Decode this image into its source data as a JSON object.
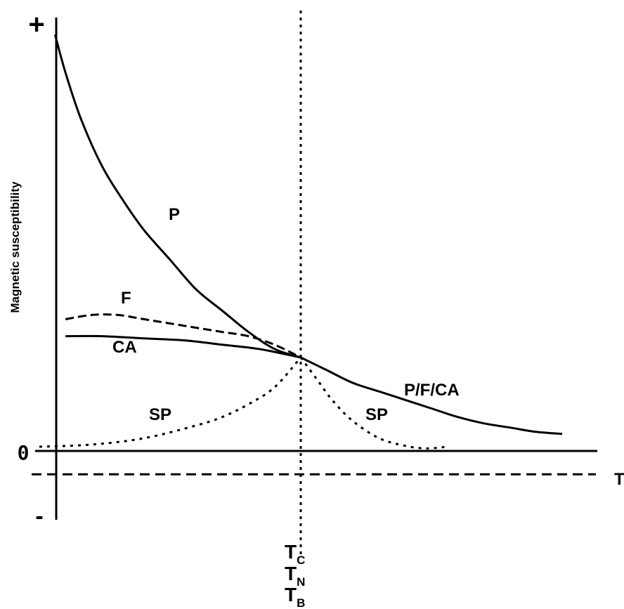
{
  "chart_data": {
    "type": "line",
    "ylabel": "Magnetic susceptibility",
    "xlabel": "T",
    "y_ticks": {
      "plus": "+",
      "zero": "0",
      "minus": "-"
    },
    "critical_temperature_labels": [
      {
        "main": "T",
        "sub": "C"
      },
      {
        "main": "T",
        "sub": "N"
      },
      {
        "main": "T",
        "sub": "B"
      }
    ],
    "xlim": [
      0,
      1
    ],
    "ylim": [
      -0.15,
      1.0
    ],
    "critical_x": 0.5,
    "diamagnetic_level": -0.055,
    "grid": false,
    "series": [
      {
        "name": "P",
        "label": "P",
        "style": "solid",
        "x": [
          0.03,
          0.05,
          0.08,
          0.12,
          0.16,
          0.2,
          0.25,
          0.3,
          0.35,
          0.4,
          0.45,
          0.5
        ],
        "y": [
          0.98,
          0.89,
          0.78,
          0.67,
          0.59,
          0.52,
          0.45,
          0.38,
          0.33,
          0.28,
          0.24,
          0.22
        ]
      },
      {
        "name": "F",
        "label": "F",
        "style": "dashed",
        "x": [
          0.05,
          0.1,
          0.15,
          0.2,
          0.25,
          0.3,
          0.35,
          0.4,
          0.45,
          0.5
        ],
        "y": [
          0.31,
          0.32,
          0.32,
          0.31,
          0.3,
          0.29,
          0.28,
          0.27,
          0.25,
          0.22
        ]
      },
      {
        "name": "CA",
        "label": "CA",
        "style": "solid",
        "x": [
          0.05,
          0.12,
          0.2,
          0.28,
          0.35,
          0.42,
          0.5
        ],
        "y": [
          0.27,
          0.27,
          0.265,
          0.26,
          0.25,
          0.24,
          0.22
        ]
      },
      {
        "name": "SP (T < T_B)",
        "label": "SP",
        "style": "dotted",
        "x": [
          0.0,
          0.1,
          0.2,
          0.3,
          0.35,
          0.4,
          0.45,
          0.5
        ],
        "y": [
          0.01,
          0.015,
          0.03,
          0.06,
          0.08,
          0.11,
          0.15,
          0.22
        ]
      },
      {
        "name": "SP (T > T_B)",
        "label": "SP",
        "style": "dotted",
        "x": [
          0.5,
          0.53,
          0.56,
          0.6,
          0.65,
          0.7,
          0.74,
          0.78
        ],
        "y": [
          0.22,
          0.17,
          0.12,
          0.07,
          0.03,
          0.012,
          0.006,
          0.01
        ]
      },
      {
        "name": "P/F/CA",
        "label": "P/F/CA",
        "style": "solid",
        "x": [
          0.5,
          0.55,
          0.6,
          0.65,
          0.7,
          0.75,
          0.8,
          0.85,
          0.9,
          0.95,
          1.0
        ],
        "y": [
          0.22,
          0.19,
          0.16,
          0.14,
          0.12,
          0.1,
          0.08,
          0.065,
          0.055,
          0.045,
          0.04
        ]
      }
    ]
  }
}
